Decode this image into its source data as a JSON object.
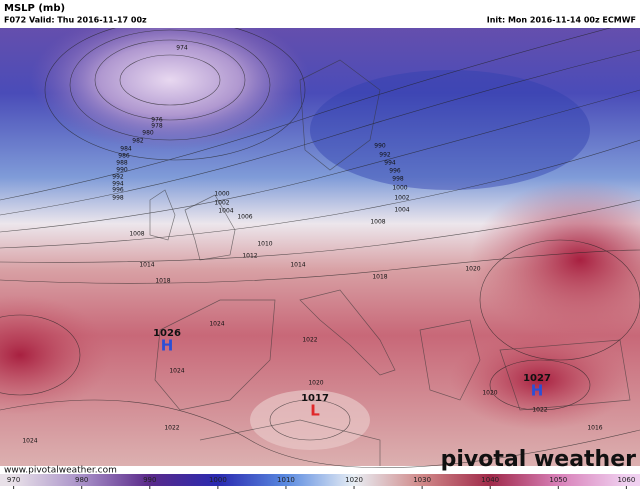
{
  "header": {
    "title": "MSLP (mb)",
    "valid": "F072 Valid: Thu 2016-11-17 00z",
    "init": "Init: Mon 2016-11-14 00z ECMWF"
  },
  "centers": [
    {
      "letter": "H",
      "value": 1026,
      "color": "#2b4fd6"
    },
    {
      "letter": "H",
      "value": 1027,
      "color": "#2b4fd6"
    },
    {
      "letter": "L",
      "value": 1017,
      "color": "#e0282a"
    }
  ],
  "isobar_labels": [
    974,
    976,
    978,
    980,
    982,
    984,
    986,
    988,
    990,
    992,
    994,
    996,
    998,
    990,
    992,
    994,
    996,
    998,
    1000,
    1002,
    1004,
    1000,
    1002,
    1004,
    1006,
    1008,
    1010,
    1012,
    1014,
    1014,
    1018,
    1018,
    1020,
    1024,
    1022,
    1024,
    1020,
    1020,
    1022,
    1022,
    1024,
    1016,
    1008
  ],
  "colorbar": {
    "lim": [
      968,
      1062
    ],
    "ticks": [
      970,
      980,
      990,
      1000,
      1010,
      1020,
      1030,
      1040,
      1050,
      1060
    ],
    "colors": [
      "#e8e0e8",
      "#a890c8",
      "#5a2a8a",
      "#2a2ab0",
      "#5a8ae0",
      "#e8eef4",
      "#d08888",
      "#a02a4a",
      "#d880b8",
      "#f0d0f0"
    ]
  },
  "footer": {
    "url": "www.pivotalweather.com",
    "brand": "pivotal weather"
  }
}
